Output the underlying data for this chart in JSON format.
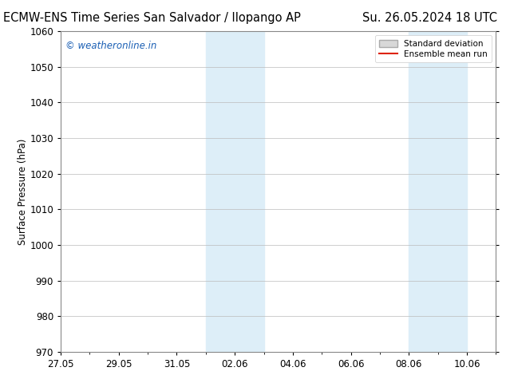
{
  "title_left": "ECMW-ENS Time Series San Salvador / Ilopango AP",
  "title_right": "Su. 26.05.2024 18 UTC",
  "ylabel": "Surface Pressure (hPa)",
  "ylim": [
    970,
    1060
  ],
  "yticks": [
    970,
    980,
    990,
    1000,
    1010,
    1020,
    1030,
    1040,
    1050,
    1060
  ],
  "x_start": "2024-05-27",
  "x_end": "2024-06-11",
  "xtick_labels": [
    "27.05",
    "29.05",
    "31.05",
    "02.06",
    "04.06",
    "06.06",
    "08.06",
    "10.06"
  ],
  "xtick_dates": [
    "2024-05-27",
    "2024-05-29",
    "2024-05-31",
    "2024-06-02",
    "2024-06-04",
    "2024-06-06",
    "2024-06-08",
    "2024-06-10"
  ],
  "shaded_regions": [
    {
      "x0": "2024-06-01",
      "x1": "2024-06-03"
    },
    {
      "x0": "2024-06-08",
      "x1": "2024-06-10"
    }
  ],
  "shaded_color": "#ddeef8",
  "grid_color": "#bbbbbb",
  "background_color": "#ffffff",
  "plot_bg_color": "#ffffff",
  "watermark_text": "© weatheronline.in",
  "watermark_color": "#1a5fb4",
  "legend_std_label": "Standard deviation",
  "legend_mean_label": "Ensemble mean run",
  "legend_std_color": "#d8d8d8",
  "legend_std_edge": "#aaaaaa",
  "legend_mean_color": "#dd2200",
  "title_fontsize": 10.5,
  "axis_fontsize": 8.5,
  "tick_fontsize": 8.5,
  "watermark_fontsize": 8.5
}
